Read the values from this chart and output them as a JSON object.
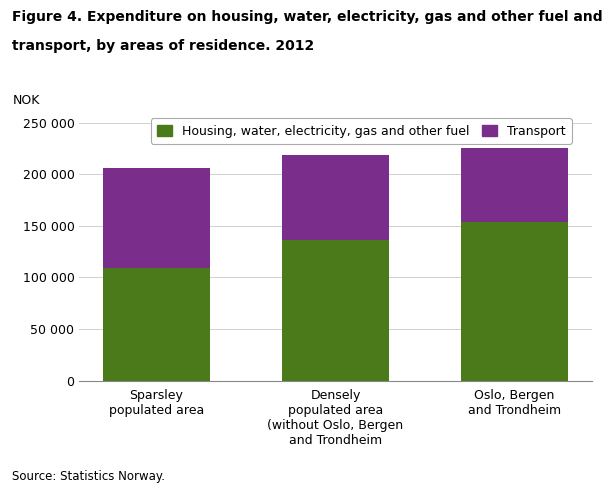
{
  "title_line1": "Figure 4. Expenditure on housing, water, electricity, gas and other fuel and",
  "title_line2": "transport, by areas of residence. 2012",
  "ylabel": "NOK",
  "categories": [
    "Sparsley\npopulated area",
    "Densely\npopulated area\n(without Oslo, Bergen\nand Trondheim",
    "Oslo, Bergen\nand Trondheim"
  ],
  "housing_values": [
    109000,
    136000,
    154000
  ],
  "transport_values": [
    97000,
    83000,
    71000
  ],
  "housing_color": "#4a7a19",
  "transport_color": "#7b2d8b",
  "ylim": [
    0,
    260000
  ],
  "yticks": [
    0,
    50000,
    100000,
    150000,
    200000,
    250000
  ],
  "ytick_labels": [
    "0",
    "50 000",
    "100 000",
    "150 000",
    "200 000",
    "250 000"
  ],
  "legend_housing": "Housing, water, electricity, gas and other fuel",
  "legend_transport": "Transport",
  "source": "Source: Statistics Norway.",
  "title_fontsize": 10,
  "axis_fontsize": 9,
  "legend_fontsize": 9,
  "source_fontsize": 8.5,
  "bar_width": 0.6
}
